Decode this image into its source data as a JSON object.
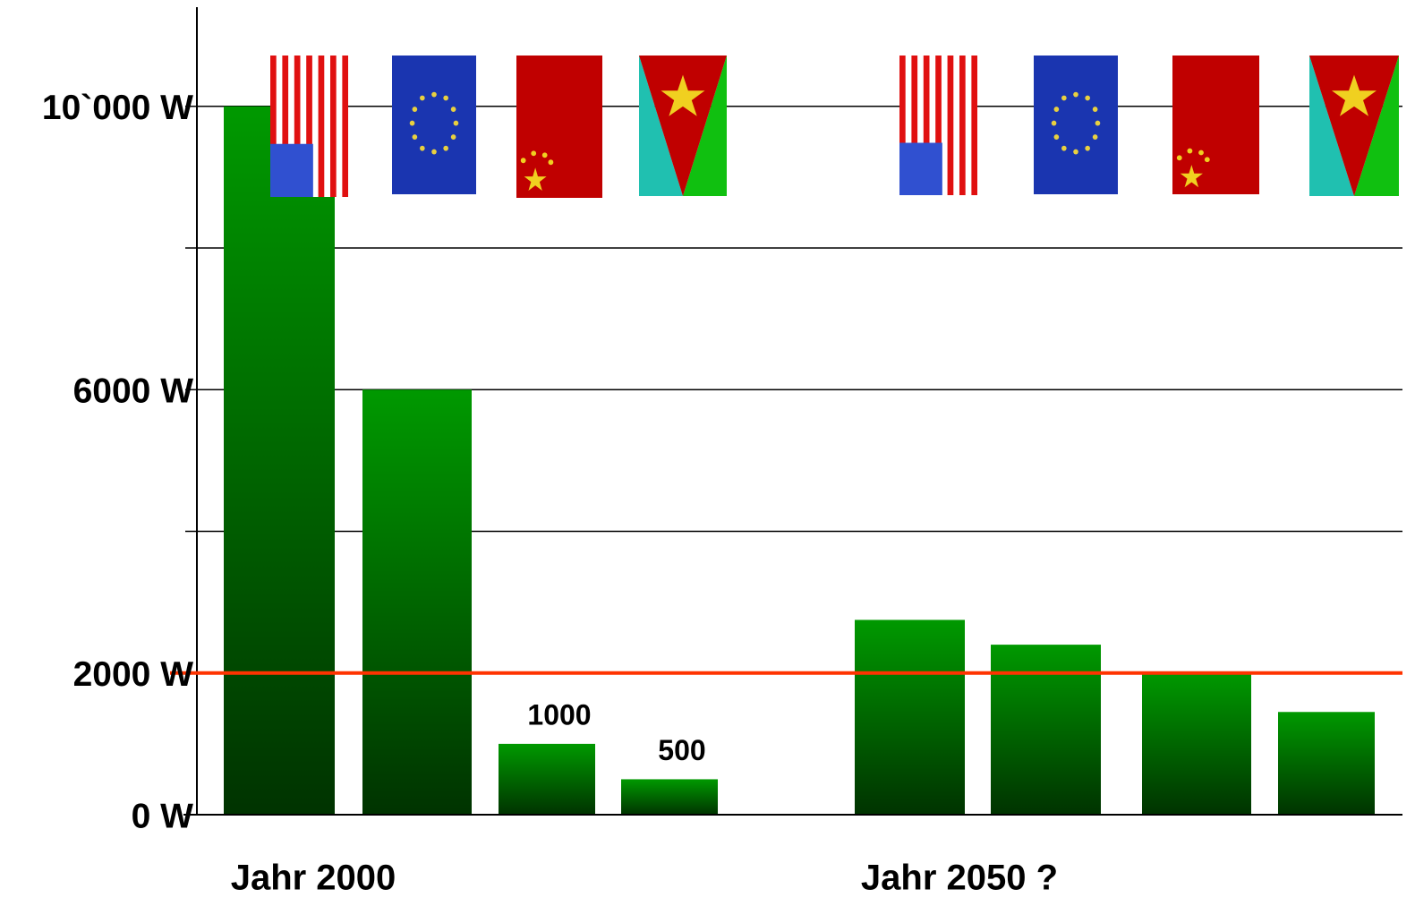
{
  "chart_data": {
    "type": "grouped_bar",
    "groups": [
      {
        "label": "Jahr 2000",
        "values": [
          10000,
          6000,
          1000,
          500
        ],
        "value_labels": [
          null,
          null,
          "1000",
          "500"
        ]
      },
      {
        "label": "Jahr 2050 ?",
        "values": [
          2750,
          2400,
          2000,
          1450
        ],
        "value_labels": [
          null,
          null,
          null,
          null
        ]
      }
    ],
    "color_top": "#009900",
    "color_bottom": "#003300",
    "ylim": [
      0,
      11400
    ],
    "yticks": [
      {
        "value": 0,
        "label": "0 W"
      },
      {
        "value": 2000,
        "label": "2000 W"
      },
      {
        "value": 6000,
        "label": "6000 W"
      },
      {
        "value": 10000,
        "label": "10`000 W"
      }
    ],
    "minor_yticks": [
      4000,
      8000
    ],
    "grid": true,
    "reference_line": {
      "value": 2000,
      "color": "#ff3300"
    }
  }
}
